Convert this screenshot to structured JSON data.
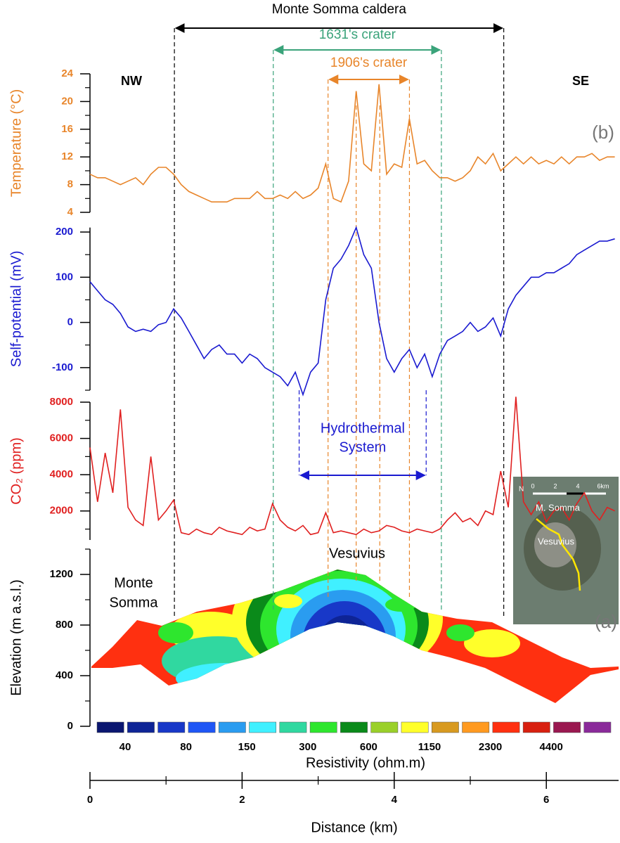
{
  "chart_data": {
    "type": "stacked-panels",
    "xlabel": "Distance (km)",
    "xlim": [
      0,
      6.95
    ],
    "xticks": [
      0,
      2,
      4,
      6
    ],
    "minor_xticks": [
      1,
      3,
      5
    ],
    "x": [
      0,
      0.1,
      0.2,
      0.3,
      0.4,
      0.5,
      0.6,
      0.7,
      0.8,
      0.9,
      1.0,
      1.1,
      1.2,
      1.3,
      1.4,
      1.5,
      1.6,
      1.7,
      1.8,
      1.9,
      2.0,
      2.1,
      2.2,
      2.3,
      2.4,
      2.5,
      2.6,
      2.7,
      2.8,
      2.9,
      3.0,
      3.1,
      3.2,
      3.3,
      3.4,
      3.5,
      3.6,
      3.7,
      3.8,
      3.9,
      4.0,
      4.1,
      4.2,
      4.3,
      4.4,
      4.5,
      4.6,
      4.7,
      4.8,
      4.9,
      5.0,
      5.1,
      5.2,
      5.3,
      5.4,
      5.5,
      5.6,
      5.7,
      5.8,
      5.9,
      6.0,
      6.1,
      6.2,
      6.3,
      6.4,
      6.5,
      6.6,
      6.7,
      6.8,
      6.9
    ],
    "panels": [
      {
        "type": "line",
        "ylabel": "Temperature (°C)",
        "color": "#e8852a",
        "ylim": [
          4,
          24
        ],
        "yticks": [
          4,
          8,
          12,
          16,
          20,
          24
        ],
        "minor_yticks": [
          6,
          10,
          14,
          18,
          22
        ],
        "values": [
          9.5,
          9,
          9,
          8.5,
          8,
          8.5,
          9,
          8,
          9.5,
          10.5,
          10.5,
          9.5,
          8,
          7,
          6.5,
          6,
          5.5,
          5.5,
          5.5,
          6,
          6,
          6,
          7,
          6,
          6,
          6.5,
          6,
          7,
          6,
          6.5,
          7.5,
          11,
          6,
          5.5,
          8.5,
          21.5,
          11,
          10,
          22.5,
          9.5,
          11,
          10.5,
          17.5,
          11,
          11.5,
          10,
          9,
          9,
          8.5,
          9,
          10,
          12,
          11,
          12.5,
          10,
          11,
          12,
          11,
          12,
          11,
          11.5,
          11,
          12,
          11,
          12,
          12,
          12.5,
          11.5,
          12,
          12
        ]
      },
      {
        "type": "line",
        "ylabel": "Self-potential (mV)",
        "color": "#1a1ad0",
        "ylim": [
          -150,
          210
        ],
        "yticks": [
          -100,
          0,
          100,
          200
        ],
        "minor_yticks": [
          -150,
          -50,
          50,
          150
        ],
        "values": [
          90,
          70,
          50,
          40,
          20,
          -10,
          -20,
          -15,
          -20,
          -5,
          0,
          30,
          10,
          -20,
          -50,
          -80,
          -60,
          -50,
          -70,
          -70,
          -90,
          -70,
          -80,
          -100,
          -110,
          -120,
          -140,
          -110,
          -160,
          -110,
          -90,
          50,
          120,
          140,
          170,
          210,
          150,
          120,
          0,
          -80,
          -110,
          -80,
          -60,
          -100,
          -70,
          -120,
          -70,
          -40,
          -30,
          -20,
          0,
          -20,
          -10,
          10,
          -30,
          30,
          60,
          80,
          100,
          100,
          110,
          110,
          120,
          130,
          150,
          160,
          170,
          180,
          180,
          185
        ]
      },
      {
        "type": "line",
        "ylabel": "CO₂ (ppm)",
        "color": "#e02020",
        "ylim": [
          400,
          8000
        ],
        "yticks": [
          2000,
          4000,
          6000,
          8000
        ],
        "minor_yticks": [
          1000,
          3000,
          5000,
          7000
        ],
        "values": [
          5500,
          2500,
          5200,
          3000,
          7600,
          2200,
          1500,
          1200,
          5000,
          1500,
          2000,
          2600,
          800,
          700,
          1000,
          800,
          700,
          1100,
          900,
          800,
          700,
          1100,
          900,
          1000,
          2400,
          1500,
          1100,
          900,
          1200,
          700,
          800,
          1900,
          800,
          900,
          800,
          700,
          1000,
          800,
          900,
          1200,
          1100,
          900,
          800,
          1000,
          900,
          800,
          1000,
          1500,
          1900,
          1400,
          1600,
          1200,
          2000,
          1800,
          4200,
          2200,
          8300,
          2500,
          1800,
          2500,
          1400,
          2000,
          2200,
          1500,
          2400,
          3000,
          2000,
          1500,
          2200,
          2000
        ]
      },
      {
        "type": "section",
        "ylabel": "Elevation (m a.s.l.)",
        "color": "#000000",
        "ylim": [
          0,
          1400
        ],
        "yticks": [
          0,
          400,
          800,
          1200
        ],
        "minor_yticks": [
          200,
          600,
          1000,
          1400
        ],
        "colorbar": {
          "label": "Resistivity (ohm.m)",
          "colors": [
            "#0a1670",
            "#0e2496",
            "#1838c8",
            "#1f56f5",
            "#2a9cf0",
            "#40f0ff",
            "#30d8a0",
            "#2ee62e",
            "#0a8a1a",
            "#9ad02a",
            "#ffff2a",
            "#d89a20",
            "#ff9a20",
            "#ff3010",
            "#d82010",
            "#9a1850",
            "#8a2a9a"
          ],
          "ticks": [
            40,
            80,
            150,
            300,
            600,
            1150,
            2300,
            4400
          ]
        }
      }
    ],
    "annotations": [
      {
        "text": "Monte Somma caldera",
        "from": 1.11,
        "to": 5.44,
        "color": "#000000"
      },
      {
        "text": "1631's crater",
        "from": 2.41,
        "to": 4.62,
        "color": "#3aa37a"
      },
      {
        "text": "1906's crater",
        "from": 3.13,
        "to": 4.2,
        "color": "#e8852a"
      },
      {
        "text": [
          "Hydrothermal",
          "System"
        ],
        "from": 2.75,
        "to": 4.42,
        "color": "#1a1ad0"
      }
    ],
    "guides": [
      {
        "x": 3.5,
        "color": "#e8852a"
      },
      {
        "x": 3.81,
        "color": "#e8852a"
      }
    ],
    "labels": {
      "nw": "NW",
      "se": "SE",
      "panel_b": "(b)",
      "panel_a": "(a)",
      "monte_somma": [
        "Monte",
        "Somma"
      ],
      "vesuvius": "Vesuvius"
    },
    "inset": {
      "north": "N",
      "scale": [
        "0",
        "2",
        "4",
        "6km"
      ],
      "places": [
        "M. Somma",
        "Vesuvius"
      ]
    }
  }
}
